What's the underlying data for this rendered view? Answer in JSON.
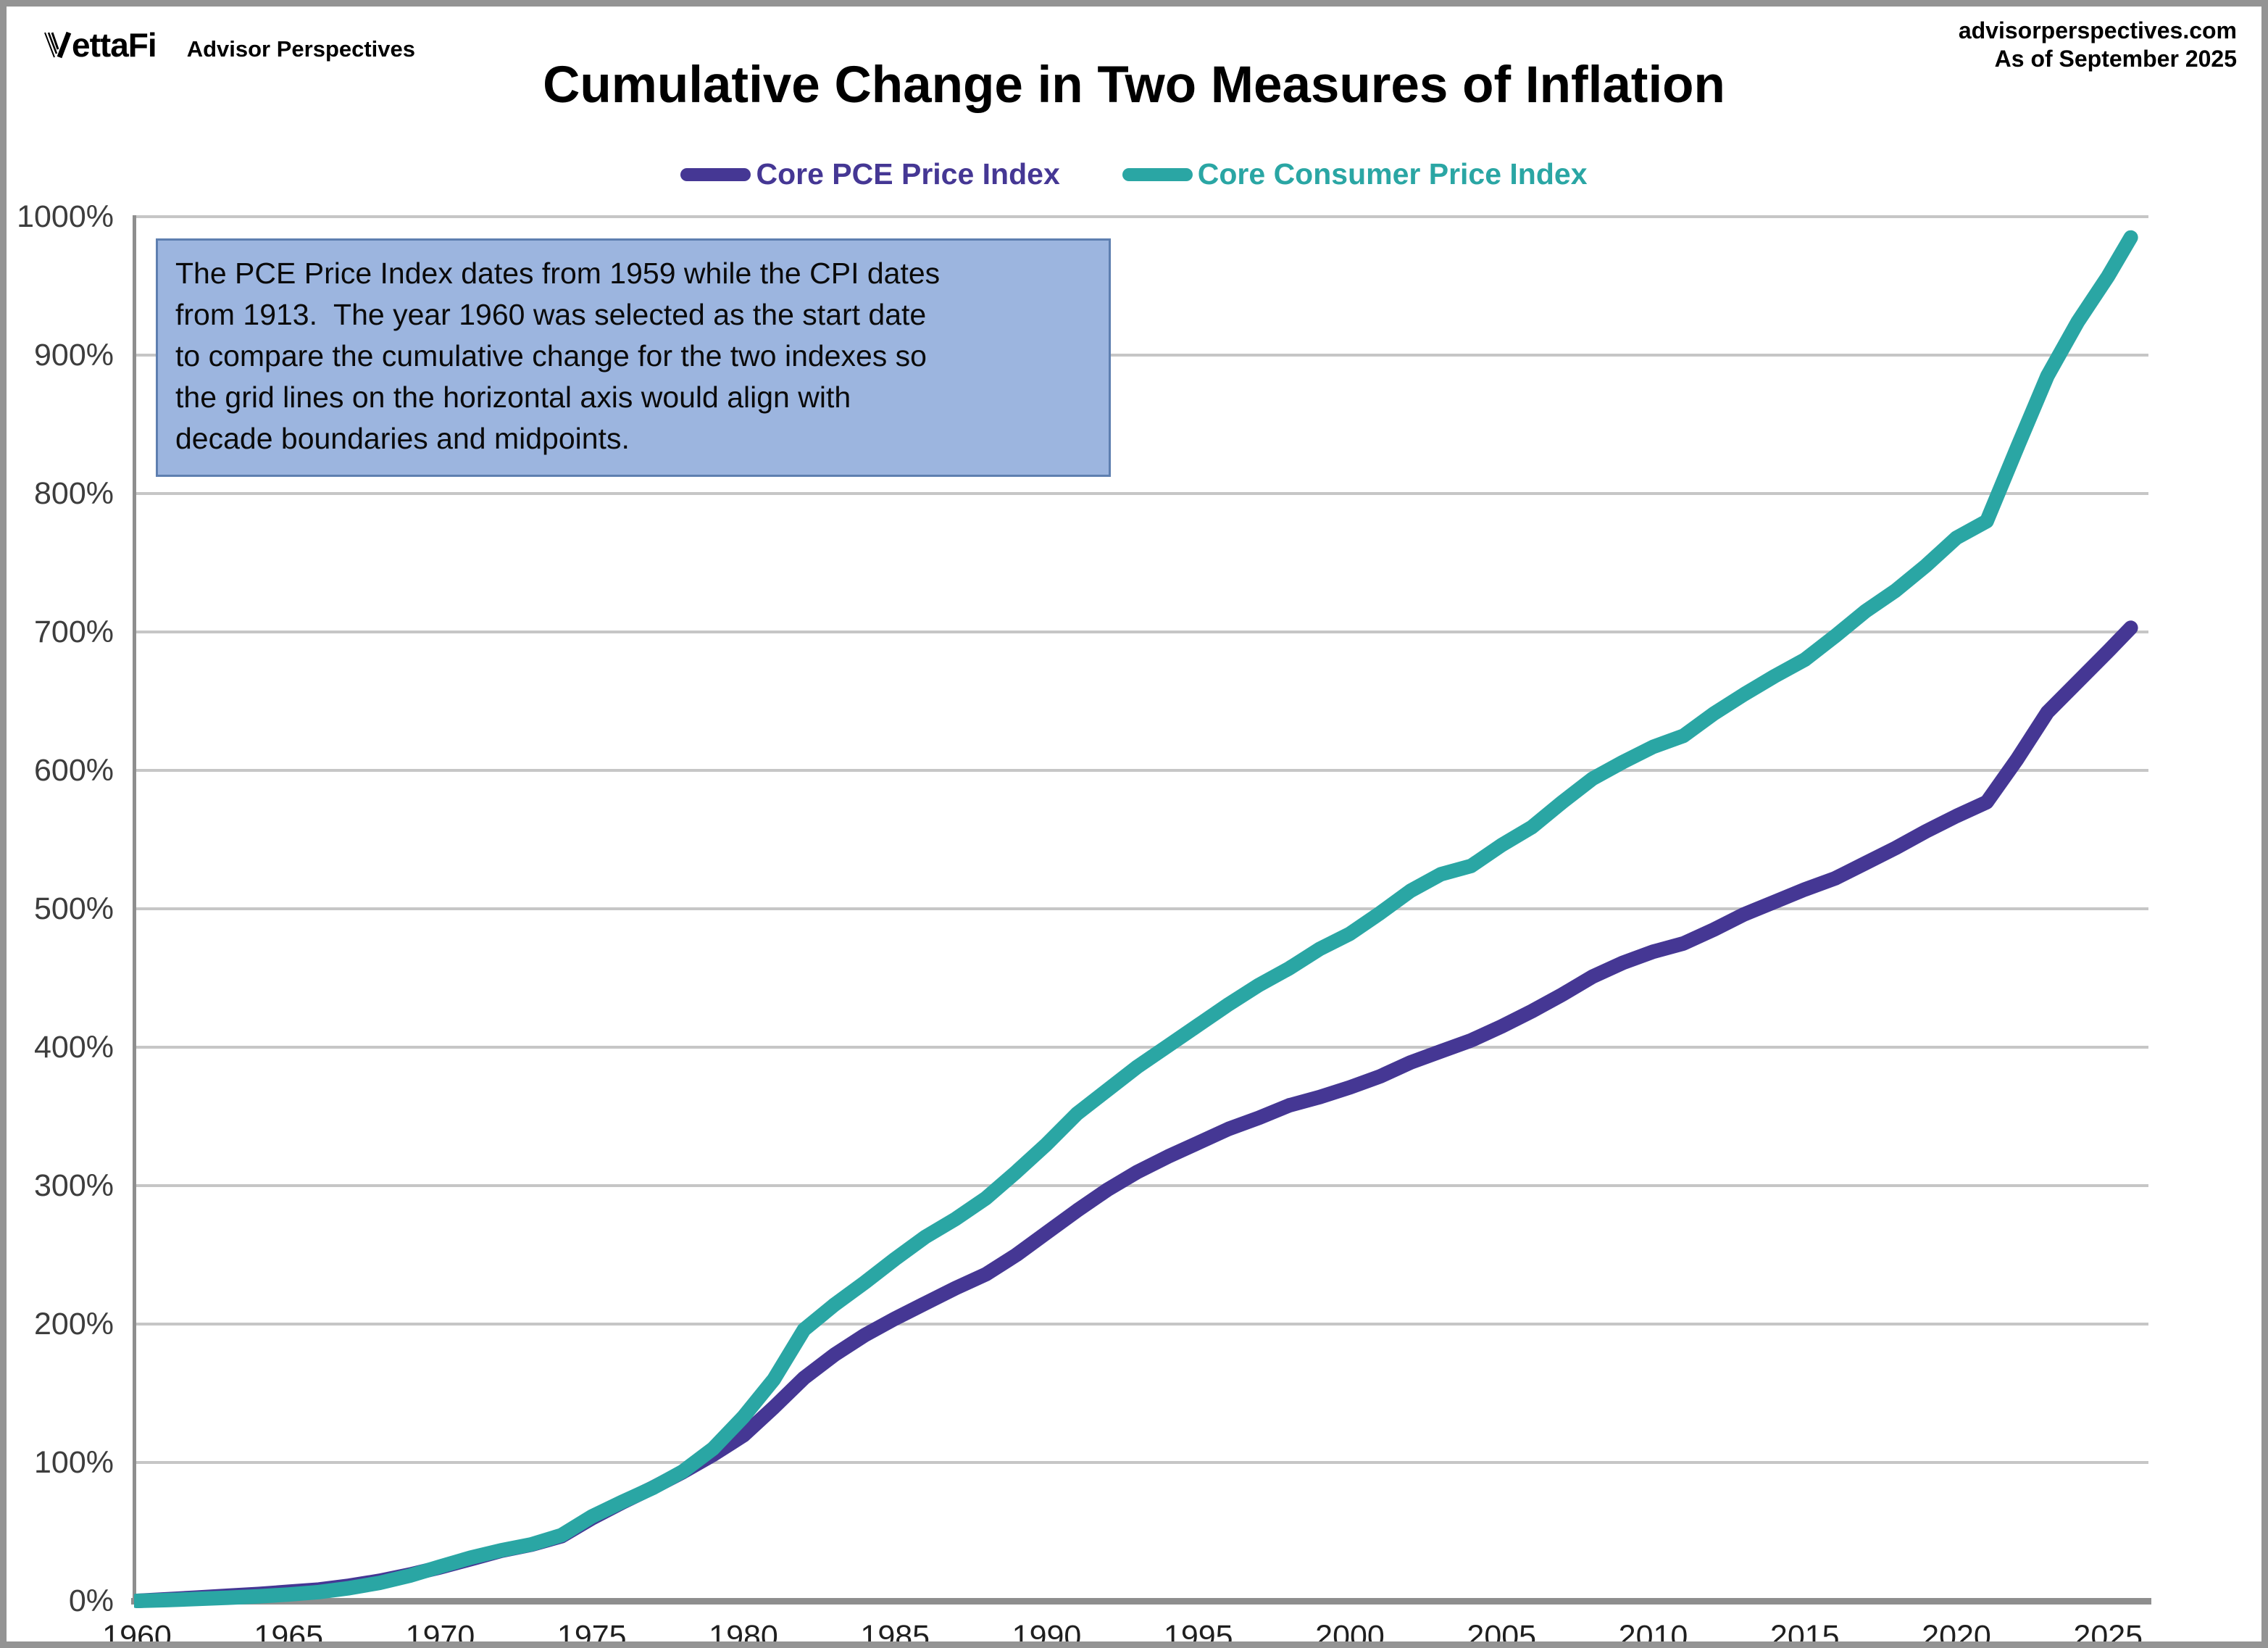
{
  "header": {
    "logo": "ettaFi",
    "logo_sub": "Advisor Perspectives",
    "site": "advisorperspectives.com",
    "as_of": "As of September 2025"
  },
  "title": "Cumulative Change in Two Measures of Inflation",
  "legend": {
    "items": [
      {
        "label": "Core PCE Price Index",
        "color": "#453794"
      },
      {
        "label": "Core Consumer Price Index",
        "color": "#2AA6A4"
      }
    ]
  },
  "annotation": {
    "lines": [
      "The PCE Price Index dates from 1959 while the CPI dates",
      "from 1913.  The year 1960 was selected as the start date",
      "to compare the cumulative change for the two indexes so",
      "the grid lines on the horizontal axis would align with",
      "decade boundaries and midpoints."
    ],
    "background": "#9CB5DF",
    "border_color": "#5E7FB0"
  },
  "chart_data": {
    "type": "line",
    "title": "Cumulative Change in Two Measures of Inflation",
    "xlabel": "",
    "ylabel": "",
    "xlim": [
      1960,
      2026.4
    ],
    "ylim": [
      0,
      1000
    ],
    "grid": true,
    "legend_position": "top",
    "x_ticks": [
      1960,
      1965,
      1970,
      1975,
      1980,
      1985,
      1990,
      1995,
      2000,
      2005,
      2010,
      2015,
      2020,
      2025
    ],
    "y_ticks": [
      0,
      100,
      200,
      300,
      400,
      500,
      600,
      700,
      800,
      900,
      1000
    ],
    "y_tick_suffix": "%",
    "x": [
      1960,
      1961,
      1962,
      1963,
      1964,
      1965,
      1966,
      1967,
      1968,
      1969,
      1970,
      1971,
      1972,
      1973,
      1974,
      1975,
      1976,
      1977,
      1978,
      1979,
      1980,
      1981,
      1982,
      1983,
      1984,
      1985,
      1986,
      1987,
      1988,
      1989,
      1990,
      1991,
      1992,
      1993,
      1994,
      1995,
      1996,
      1997,
      1998,
      1999,
      2000,
      2001,
      2002,
      2003,
      2004,
      2005,
      2006,
      2007,
      2008,
      2009,
      2010,
      2011,
      2012,
      2013,
      2014,
      2015,
      2016,
      2017,
      2018,
      2019,
      2020,
      2021,
      2022,
      2023,
      2024,
      2025,
      2025.75
    ],
    "series": [
      {
        "name": "Core PCE Price Index",
        "color": "#453794",
        "values": [
          0,
          1.2,
          2.4,
          3.7,
          5.0,
          6.6,
          8.2,
          11,
          14.5,
          19,
          24.3,
          30.1,
          36.1,
          40.6,
          46.7,
          59.7,
          71.1,
          81.7,
          93.1,
          105.6,
          119.6,
          139.8,
          161.1,
          177.8,
          192,
          204,
          215,
          226,
          236,
          250,
          266,
          282,
          297,
          310,
          321,
          331,
          341,
          349,
          358,
          364,
          371,
          379,
          389,
          397,
          405,
          415,
          426,
          438,
          451,
          461,
          469,
          475,
          485,
          496,
          505,
          514,
          522,
          533,
          544,
          556,
          567,
          577,
          608,
          642,
          664,
          686,
          703
        ]
      },
      {
        "name": "Core Consumer Price Index",
        "color": "#2AA6A4",
        "values": [
          0,
          0.6,
          1.4,
          2.3,
          3.3,
          4.6,
          6.4,
          9.2,
          13,
          18.2,
          24.8,
          31.2,
          36.5,
          40.8,
          47.5,
          61,
          71.5,
          81.5,
          93.5,
          110,
          133,
          160,
          196,
          214,
          230,
          247,
          263,
          276,
          291,
          310,
          330,
          352,
          369,
          386,
          401,
          416,
          431,
          445,
          457,
          471,
          482,
          497,
          513,
          525,
          531,
          546,
          559,
          577,
          594,
          606,
          617,
          625,
          641,
          655,
          668,
          680,
          697,
          715,
          730,
          748,
          768,
          780,
          833,
          885,
          924,
          957,
          985
        ]
      }
    ],
    "end_values": {
      "Core PCE Price Index": "703%",
      "Core Consumer Price Index": "985%"
    }
  }
}
